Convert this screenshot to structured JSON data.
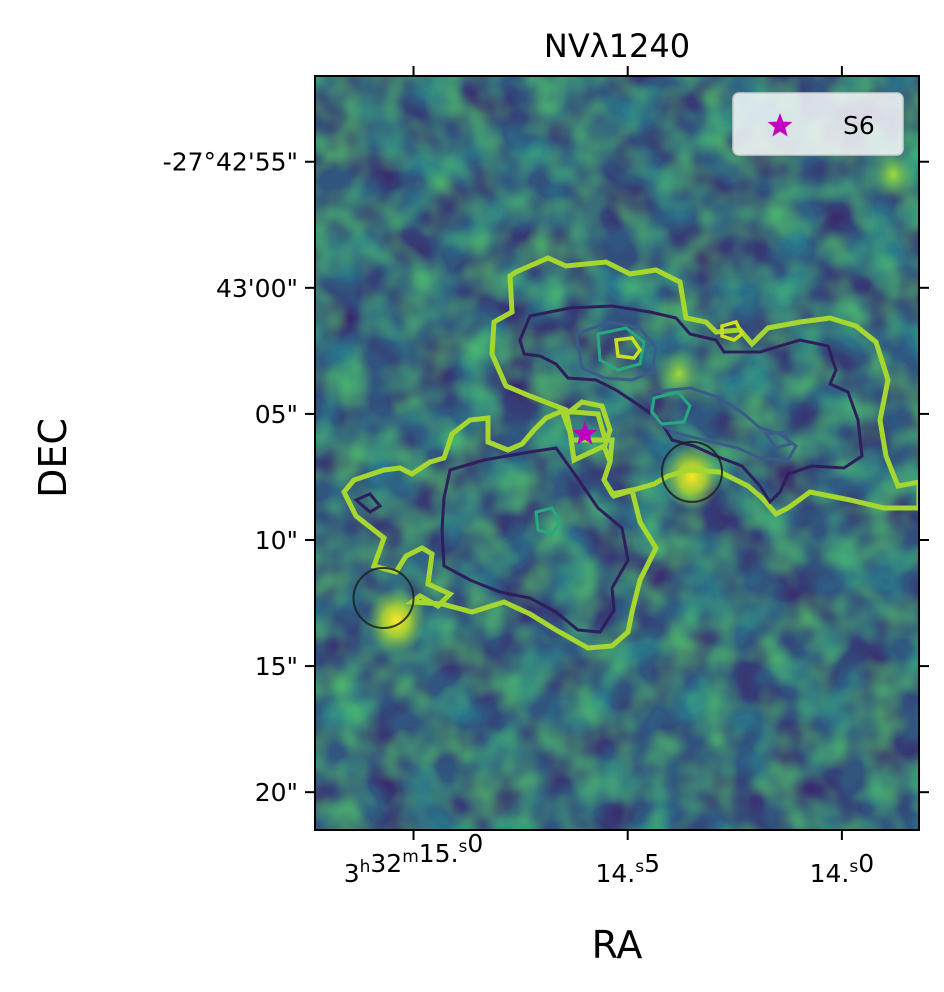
{
  "chart_data": {
    "type": "heatmap",
    "title": "NVλ1240",
    "xlabel": "RA",
    "ylabel": "DEC",
    "x_ticks": [
      {
        "value_sec": 15.0,
        "h": "3",
        "m": "32",
        "s": "15.0"
      },
      {
        "value_sec": 14.5,
        "h": "",
        "m": "",
        "s": "14.5"
      },
      {
        "value_sec": 14.0,
        "h": "",
        "m": "",
        "s": "14.0"
      }
    ],
    "xlim_sec": [
      15.23,
      13.82
    ],
    "y_ticks": [
      {
        "value": -55,
        "label": "-27°42'55\""
      },
      {
        "value": -60,
        "label": "43'00\""
      },
      {
        "value": -65,
        "label": "05\""
      },
      {
        "value": -70,
        "label": "10\""
      },
      {
        "value": -75,
        "label": "15\""
      },
      {
        "value": -80,
        "label": "20\""
      }
    ],
    "ylim_arcsec": [
      -81.5,
      -51.6
    ],
    "colormap": "viridis",
    "contour_colors": [
      "#a6d630",
      "#2e1f5c",
      "#3b5c8a",
      "#28a87f"
    ],
    "legend": {
      "location": "top-right",
      "entries": [
        {
          "label": "S6",
          "marker": "star",
          "color": "#c000c0"
        }
      ]
    },
    "markers": [
      {
        "name": "S6",
        "type": "star",
        "ra_sec": 14.6,
        "dec": -65.8,
        "color": "#c000c0"
      },
      {
        "type": "circle",
        "ra_sec": 14.35,
        "dec": -67.3,
        "color": "#1e1e1e"
      },
      {
        "type": "circle",
        "ra_sec": 15.07,
        "dec": -72.3,
        "color": "#1e1e1e"
      }
    ],
    "bright_spots": [
      {
        "ra_sec": 15.04,
        "dec": -73.2,
        "level": "high"
      },
      {
        "ra_sec": 14.35,
        "dec": -67.5,
        "level": "high"
      },
      {
        "ra_sec": 14.38,
        "dec": -63.4,
        "level": "mid"
      },
      {
        "ra_sec": 13.88,
        "dec": -55.5,
        "level": "mid"
      }
    ]
  }
}
